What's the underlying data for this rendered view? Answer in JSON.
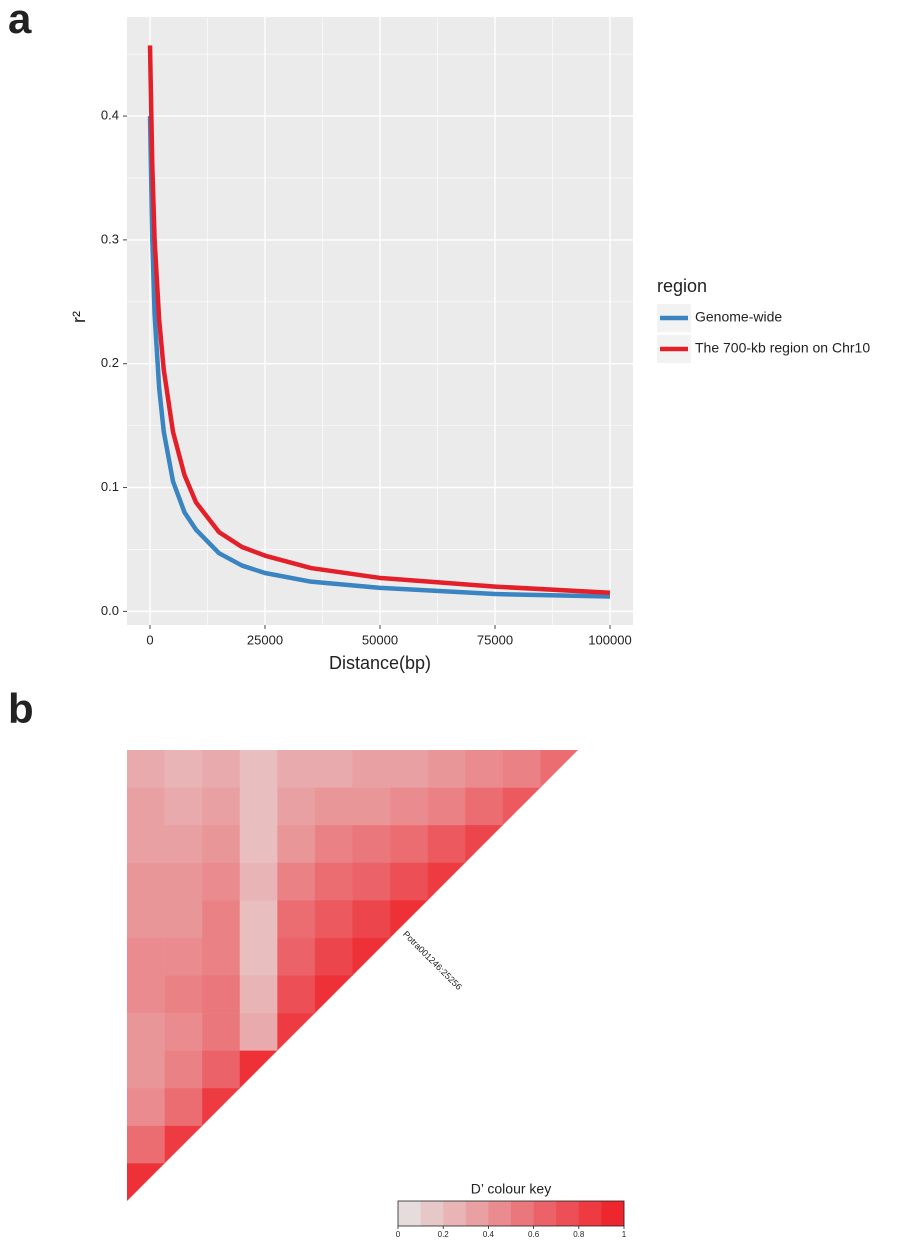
{
  "chart_data": [
    {
      "type": "line",
      "panel_label": "a",
      "x_label": "Distance(bp)",
      "y_label": "r²",
      "x": [
        0,
        500,
        1000,
        2000,
        3000,
        5000,
        7500,
        10000,
        15000,
        20000,
        25000,
        35000,
        50000,
        75000,
        100000
      ],
      "series": [
        {
          "name": "Genome-wide",
          "color": "#3a84c2",
          "values": [
            0.4,
            0.3,
            0.24,
            0.18,
            0.145,
            0.105,
            0.08,
            0.066,
            0.047,
            0.037,
            0.031,
            0.024,
            0.019,
            0.014,
            0.012
          ]
        },
        {
          "name": "The 700-kb region on Chr10",
          "color": "#e3202a",
          "values": [
            0.457,
            0.36,
            0.3,
            0.235,
            0.195,
            0.145,
            0.11,
            0.088,
            0.064,
            0.052,
            0.045,
            0.035,
            0.027,
            0.02,
            0.015
          ]
        }
      ],
      "legend_title": "region",
      "legend_position": "right",
      "xlim": [
        -5000,
        105000
      ],
      "xticks": [
        0,
        25000,
        50000,
        75000,
        100000
      ],
      "ylim": [
        -0.011,
        0.48
      ],
      "yticks": [
        {
          "value": 0,
          "label": "0.0"
        },
        0.1,
        0.2,
        0.3,
        0.4
      ],
      "grid": true
    },
    {
      "type": "heatmap",
      "panel_label": "b",
      "matrix": [
        [
          0.3,
          0.25,
          0.3,
          0.2,
          0.3,
          0.3,
          0.35,
          0.35,
          0.4,
          0.45,
          0.5,
          0.6
        ],
        [
          0.35,
          0.3,
          0.35,
          0.2,
          0.35,
          0.4,
          0.4,
          0.45,
          0.5,
          0.6,
          0.7
        ],
        [
          0.35,
          0.35,
          0.4,
          0.2,
          0.4,
          0.5,
          0.55,
          0.6,
          0.7,
          0.8
        ],
        [
          0.4,
          0.4,
          0.45,
          0.25,
          0.5,
          0.6,
          0.65,
          0.75,
          0.85
        ],
        [
          0.4,
          0.4,
          0.5,
          0.2,
          0.6,
          0.7,
          0.8,
          0.9
        ],
        [
          0.45,
          0.45,
          0.5,
          0.2,
          0.65,
          0.8,
          0.9
        ],
        [
          0.45,
          0.5,
          0.55,
          0.25,
          0.75,
          0.9
        ],
        [
          0.4,
          0.45,
          0.55,
          0.3,
          0.85
        ],
        [
          0.4,
          0.5,
          0.65,
          0.9
        ],
        [
          0.45,
          0.6,
          0.85
        ],
        [
          0.6,
          0.85
        ],
        [
          0.9
        ]
      ],
      "annotation": "Potra001246:25256",
      "colorbar": {
        "title": "D’ colour key",
        "lim": [
          0,
          1
        ],
        "ticks": [
          0,
          0.2,
          0.4,
          0.6,
          0.8,
          1
        ],
        "colors": [
          "#e6e6e6",
          "#ee1d24"
        ]
      }
    }
  ]
}
